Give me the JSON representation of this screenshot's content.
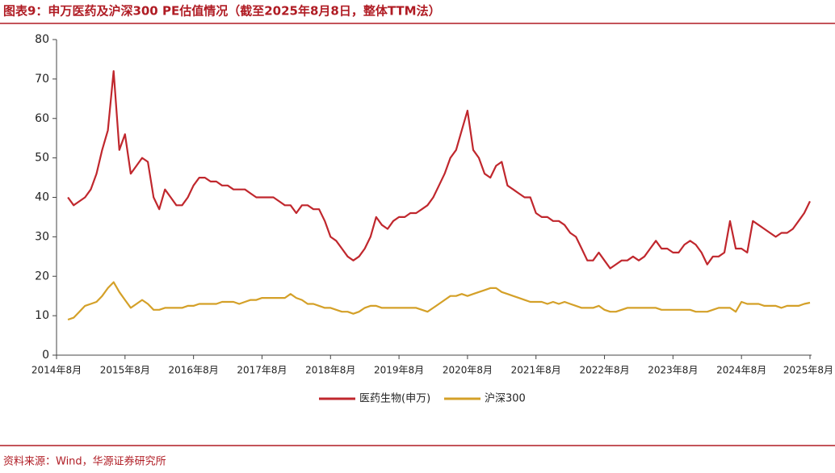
{
  "chart_data": {
    "type": "line",
    "title": "图表9：申万医药及沪深300 PE估值情况（截至2025年8月8日，整体TTM法）",
    "source": "资料来源：Wind，华源证券研究所",
    "x": [
      "2014年8月",
      null,
      null,
      null,
      null,
      null,
      null,
      null,
      null,
      null,
      null,
      null,
      "2015年8月",
      null,
      null,
      null,
      null,
      null,
      null,
      null,
      null,
      null,
      null,
      null,
      "2016年8月",
      null,
      null,
      null,
      null,
      null,
      null,
      null,
      null,
      null,
      null,
      null,
      "2017年8月",
      null,
      null,
      null,
      null,
      null,
      null,
      null,
      null,
      null,
      null,
      null,
      "2018年8月",
      null,
      null,
      null,
      null,
      null,
      null,
      null,
      null,
      null,
      null,
      null,
      "2019年8月",
      null,
      null,
      null,
      null,
      null,
      null,
      null,
      null,
      null,
      null,
      null,
      "2020年8月",
      null,
      null,
      null,
      null,
      null,
      null,
      null,
      null,
      null,
      null,
      null,
      "2021年8月",
      null,
      null,
      null,
      null,
      null,
      null,
      null,
      null,
      null,
      null,
      null,
      "2022年8月",
      null,
      null,
      null,
      null,
      null,
      null,
      null,
      null,
      null,
      null,
      null,
      "2023年8月",
      null,
      null,
      null,
      null,
      null,
      null,
      null,
      null,
      null,
      null,
      null,
      "2024年8月",
      null,
      null,
      null,
      null,
      null,
      null,
      null,
      null,
      null,
      null,
      null,
      "2025年8月"
    ],
    "series": [
      {
        "name": "医药生物(申万)",
        "color": "#c0272d",
        "values": [
          null,
          null,
          40,
          38,
          39,
          40,
          42,
          46,
          52,
          57,
          72,
          52,
          56,
          46,
          48,
          50,
          49,
          40,
          37,
          42,
          40,
          38,
          38,
          40,
          43,
          45,
          45,
          44,
          44,
          43,
          43,
          42,
          42,
          42,
          41,
          40,
          40,
          40,
          40,
          39,
          38,
          38,
          36,
          38,
          38,
          37,
          37,
          34,
          30,
          29,
          27,
          25,
          24,
          25,
          27,
          30,
          35,
          33,
          32,
          34,
          35,
          35,
          36,
          36,
          37,
          38,
          40,
          43,
          46,
          50,
          52,
          57,
          62,
          52,
          50,
          46,
          45,
          48,
          49,
          43,
          42,
          41,
          40,
          40,
          36,
          35,
          35,
          34,
          34,
          33,
          31,
          30,
          27,
          24,
          24,
          26,
          24,
          22,
          23,
          24,
          24,
          25,
          24,
          25,
          27,
          29,
          27,
          27,
          26,
          26,
          28,
          29,
          28,
          26,
          23,
          25,
          25,
          26,
          34,
          27,
          27,
          26,
          34,
          33,
          32,
          31,
          30,
          31,
          31,
          32,
          34,
          36,
          39
        ]
      },
      {
        "name": "沪深300",
        "color": "#d4a028",
        "values": [
          null,
          null,
          9,
          9.5,
          11,
          12.5,
          13,
          13.5,
          15,
          17,
          18.5,
          16,
          14,
          12,
          13,
          14,
          13,
          11.5,
          11.5,
          12,
          12,
          12,
          12,
          12.5,
          12.5,
          13,
          13,
          13,
          13,
          13.5,
          13.5,
          13.5,
          13,
          13.5,
          14,
          14,
          14.5,
          14.5,
          14.5,
          14.5,
          14.5,
          15.5,
          14.5,
          14,
          13,
          13,
          12.5,
          12,
          12,
          11.5,
          11,
          11,
          10.5,
          11,
          12,
          12.5,
          12.5,
          12,
          12,
          12,
          12,
          12,
          12,
          12,
          11.5,
          11,
          12,
          13,
          14,
          15,
          15,
          15.5,
          15,
          15.5,
          16,
          16.5,
          17,
          17,
          16,
          15.5,
          15,
          14.5,
          14,
          13.5,
          13.5,
          13.5,
          13,
          13.5,
          13,
          13.5,
          13,
          12.5,
          12,
          12,
          12,
          12.5,
          11.5,
          11,
          11,
          11.5,
          12,
          12,
          12,
          12,
          12,
          12,
          11.5,
          11.5,
          11.5,
          11.5,
          11.5,
          11.5,
          11,
          11,
          11,
          11.5,
          12,
          12,
          12,
          11,
          13.5,
          13,
          13,
          13,
          12.5,
          12.5,
          12.5,
          12,
          12.5,
          12.5,
          12.5,
          13,
          13.3
        ]
      }
    ],
    "ylim": [
      0,
      80
    ],
    "yticks": [
      0,
      10,
      20,
      30,
      40,
      50,
      60,
      70,
      80
    ],
    "legend": "bottom"
  }
}
